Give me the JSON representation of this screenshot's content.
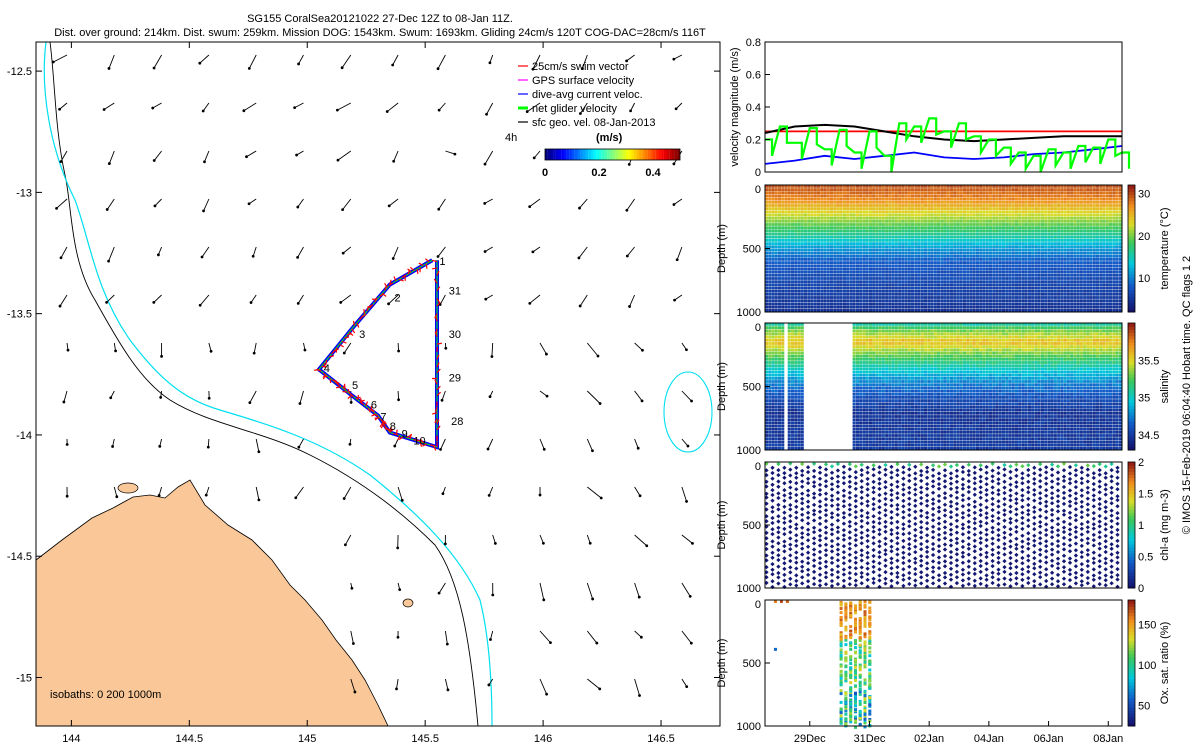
{
  "title_line1": "SG155 CoralSea20121022 27-Dec 12Z to 08-Jan 11Z.",
  "title_line2": "Dist. over ground: 214km. Dist. swum: 259km. Mission DOG: 1543km. Swum: 1693km. Gliding 24cm/s 120T COG-DAC=28cm/s 116T",
  "footer_text": "© IMOS 15-Feb-2019 06:04:40 Hobart time. QC flags 1  2",
  "colors": {
    "land": "#fac898",
    "isobath_shallow": "#000000",
    "isobath_deep": "#00e0f0",
    "track": "#0000ff",
    "swim_vector": "#ff0000",
    "gps_velocity": "#ff00ff",
    "dac": "#0000ff",
    "net_glider": "#00ff00",
    "sfc_geo": "#000000"
  },
  "chart_data": [
    {
      "type": "scatter",
      "name": "map",
      "xlim": [
        143.85,
        146.75
      ],
      "ylim": [
        -15.2,
        -12.38
      ],
      "xticks": [
        144,
        144.5,
        145,
        145.5,
        146,
        146.5
      ],
      "yticks": [
        -12.5,
        -13,
        -13.5,
        -14,
        -14.5,
        -15
      ],
      "ytick_labels": [
        "-12.5",
        "-13",
        "-13.5",
        "-14",
        "-14.5",
        "-15"
      ],
      "isobath_label": "isobaths: 0   200  1000m",
      "legend": [
        {
          "label": "25cm/s swim vector",
          "color": "#ff0000"
        },
        {
          "label": "GPS surface velocity",
          "color": "#ff00ff"
        },
        {
          "label": "dive-avg current veloc.",
          "color": "#0000ff"
        },
        {
          "label": "net glider velocity",
          "color": "#00ff00"
        },
        {
          "label": "sfc geo. vel. 08-Jan-2013",
          "color": "#000000"
        }
      ],
      "legend_placement": "top-right",
      "vector_age_label": "4h",
      "colorbar": {
        "title": "(m/s)",
        "ticks": [
          0,
          0.2,
          0.4
        ],
        "range": [
          0,
          0.5
        ]
      },
      "track": [
        [
          145.53,
          -13.28
        ],
        [
          145.35,
          -13.38
        ],
        [
          145.2,
          -13.55
        ],
        [
          145.05,
          -13.73
        ],
        [
          145.18,
          -13.83
        ],
        [
          145.3,
          -13.92
        ],
        [
          145.35,
          -13.99
        ],
        [
          145.55,
          -14.05
        ],
        [
          145.55,
          -13.72
        ],
        [
          145.55,
          -13.28
        ]
      ],
      "day_labels": [
        {
          "text": "1",
          "x": 145.56,
          "y": -13.3
        },
        {
          "text": "2",
          "x": 145.37,
          "y": -13.45
        },
        {
          "text": "3",
          "x": 145.22,
          "y": -13.6
        },
        {
          "text": "4",
          "x": 145.07,
          "y": -13.74
        },
        {
          "text": "5",
          "x": 145.19,
          "y": -13.81
        },
        {
          "text": "6",
          "x": 145.27,
          "y": -13.89
        },
        {
          "text": "7",
          "x": 145.31,
          "y": -13.94
        },
        {
          "text": "8",
          "x": 145.35,
          "y": -13.98
        },
        {
          "text": "9",
          "x": 145.4,
          "y": -14.01
        },
        {
          "text": "10",
          "x": 145.45,
          "y": -14.04
        },
        {
          "text": "28",
          "x": 145.61,
          "y": -13.96
        },
        {
          "text": "29",
          "x": 145.6,
          "y": -13.78
        },
        {
          "text": "30",
          "x": 145.6,
          "y": -13.6
        },
        {
          "text": "31",
          "x": 145.6,
          "y": -13.42
        }
      ]
    },
    {
      "type": "line",
      "name": "velocity",
      "ylabel": "velocity magnitude (m/s)",
      "ylim": [
        0,
        0.8
      ],
      "yticks": [
        0,
        0.2,
        0.4,
        0.6,
        0.8
      ],
      "xlim": [
        0,
        11.96
      ],
      "series": [
        {
          "color": "#ff0000",
          "x": [
            0,
            11.96
          ],
          "values": [
            0.25,
            0.25
          ]
        },
        {
          "color": "#000000",
          "x": [
            0,
            1,
            2,
            3,
            4,
            5,
            6,
            7,
            8,
            9,
            10,
            11,
            11.96
          ],
          "values": [
            0.24,
            0.28,
            0.29,
            0.28,
            0.25,
            0.22,
            0.2,
            0.19,
            0.2,
            0.21,
            0.22,
            0.22,
            0.22
          ]
        },
        {
          "color": "#0000ff",
          "x": [
            0,
            1,
            2,
            3,
            4,
            5,
            6,
            7,
            8,
            9,
            10,
            11,
            11.96
          ],
          "values": [
            0.05,
            0.07,
            0.1,
            0.08,
            0.1,
            0.12,
            0.09,
            0.08,
            0.09,
            0.11,
            0.12,
            0.14,
            0.16
          ]
        },
        {
          "color": "#00ff00",
          "x": [
            0,
            0.5,
            1,
            1.5,
            2,
            2.5,
            3,
            3.5,
            4,
            4.5,
            5,
            5.5,
            6,
            6.5,
            7,
            7.5,
            8,
            8.5,
            9,
            9.5,
            10,
            10.5,
            11,
            11.5,
            11.96
          ],
          "values": [
            0.2,
            0.28,
            0.18,
            0.27,
            0.14,
            0.26,
            0.12,
            0.25,
            0.1,
            0.3,
            0.28,
            0.33,
            0.25,
            0.3,
            0.22,
            0.2,
            0.15,
            0.12,
            0.1,
            0.14,
            0.12,
            0.16,
            0.15,
            0.2,
            0.12
          ]
        }
      ]
    },
    {
      "type": "heatmap",
      "name": "temperature",
      "ylabel": "Depth (m)",
      "yticks": [
        0,
        500,
        1000
      ],
      "cbar_label": "temperature (°C)",
      "cbar_range": [
        2,
        32
      ],
      "cbar_ticks": [
        10,
        20,
        30
      ],
      "profile": [
        [
          0,
          30
        ],
        [
          100,
          28
        ],
        [
          200,
          24
        ],
        [
          300,
          20
        ],
        [
          400,
          16
        ],
        [
          500,
          11
        ],
        [
          600,
          8
        ],
        [
          800,
          6
        ],
        [
          1000,
          4.5
        ]
      ]
    },
    {
      "type": "heatmap",
      "name": "salinity",
      "ylabel": "Depth (m)",
      "yticks": [
        0,
        500,
        1000
      ],
      "cbar_label": "salinity",
      "cbar_range": [
        34.3,
        36
      ],
      "cbar_ticks": [
        34.5,
        35,
        35.5
      ],
      "gap_days": [
        1.3,
        2.9
      ],
      "profile": [
        [
          0,
          35.0
        ],
        [
          50,
          35.3
        ],
        [
          150,
          35.6
        ],
        [
          250,
          35.3
        ],
        [
          400,
          34.9
        ],
        [
          500,
          34.7
        ],
        [
          700,
          34.45
        ],
        [
          1000,
          34.5
        ]
      ]
    },
    {
      "type": "heatmap",
      "name": "chla",
      "ylabel": "Depth (m)",
      "yticks": [
        0,
        500,
        1000
      ],
      "cbar_label": "chl-a (mg m-3)",
      "cbar_range": [
        0,
        2
      ],
      "cbar_ticks": [
        0,
        0.5,
        1,
        1.5,
        2
      ]
    },
    {
      "type": "scatter",
      "name": "oxygen",
      "ylabel": "Depth (m)",
      "yticks": [
        0,
        500,
        1000
      ],
      "cbar_label": "Ox. sat. ratio (%)",
      "cbar_range": [
        25,
        180
      ],
      "cbar_ticks": [
        50,
        100,
        150
      ],
      "xticks": [
        1.5,
        3.5,
        5.5,
        7.5,
        9.5,
        11.5
      ],
      "xtick_labels": [
        "29Dec",
        "31Dec",
        "02Jan",
        "04Jan",
        "06Jan",
        "08Jan"
      ]
    }
  ]
}
